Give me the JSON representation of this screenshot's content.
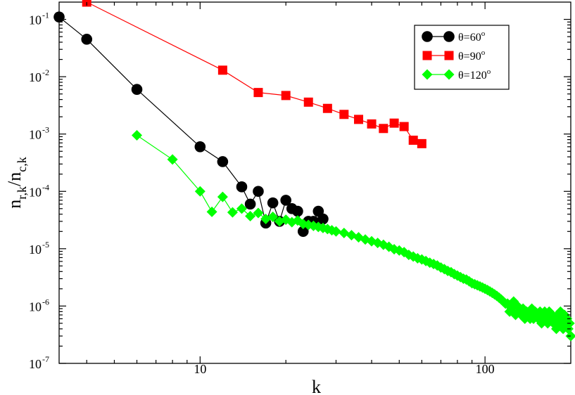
{
  "chart_data": {
    "type": "line",
    "x_scale": "log",
    "y_scale": "log",
    "xlim": [
      3.2,
      200
    ],
    "ylim": [
      1e-07,
      0.2
    ],
    "grid": false,
    "legend_position": "top-right",
    "xlabel": "k",
    "ylabel": "n r,k / n c,k",
    "x_ticks": [
      10,
      100
    ],
    "x_tick_labels": [
      "10",
      "100"
    ],
    "y_tick_labels": [
      {
        "mantissa": "10",
        "exp": "-1",
        "value": 0.1
      },
      {
        "mantissa": "10",
        "exp": "-2",
        "value": 0.01
      },
      {
        "mantissa": "10",
        "exp": "-3",
        "value": 0.001
      },
      {
        "mantissa": "10",
        "exp": "-4",
        "value": 0.0001
      },
      {
        "mantissa": "10",
        "exp": "-5",
        "value": 1e-05
      },
      {
        "mantissa": "10",
        "exp": "-6",
        "value": 1e-06
      },
      {
        "mantissa": "10",
        "exp": "-7",
        "value": 1e-07
      }
    ],
    "series": [
      {
        "name": "θ=60",
        "name_sup": "o",
        "color": "#000000",
        "marker": "circle",
        "points": [
          [
            3.2,
            0.11
          ],
          [
            4,
            0.045
          ],
          [
            6,
            0.006
          ],
          [
            10,
            0.0006
          ],
          [
            12,
            0.00033
          ],
          [
            14,
            0.00012
          ],
          [
            15,
            6e-05
          ],
          [
            16,
            0.0001
          ],
          [
            17,
            2.8e-05
          ],
          [
            18,
            6.3e-05
          ],
          [
            19,
            3e-05
          ],
          [
            20,
            7e-05
          ],
          [
            21,
            5e-05
          ],
          [
            22,
            4.5e-05
          ],
          [
            23,
            2e-05
          ],
          [
            24,
            3e-05
          ],
          [
            25,
            3e-05
          ],
          [
            26,
            4.5e-05
          ],
          [
            27,
            3.3e-05
          ]
        ]
      },
      {
        "name": "θ=90",
        "name_sup": "o",
        "color": "#ff0000",
        "marker": "square",
        "points": [
          [
            4,
            0.2
          ],
          [
            12,
            0.013
          ],
          [
            16,
            0.0053
          ],
          [
            20,
            0.0047
          ],
          [
            24,
            0.0036
          ],
          [
            28,
            0.0028
          ],
          [
            32,
            0.0022
          ],
          [
            36,
            0.0018
          ],
          [
            40,
            0.0015
          ],
          [
            44,
            0.00125
          ],
          [
            48,
            0.00155
          ],
          [
            52,
            0.00135
          ],
          [
            56,
            0.00078
          ],
          [
            60,
            0.00068
          ]
        ]
      },
      {
        "name": "θ=120",
        "name_sup": "o",
        "color": "#00ff00",
        "marker": "diamond",
        "points": [
          [
            6,
            0.00095
          ],
          [
            8,
            0.00036
          ],
          [
            10,
            0.0001
          ],
          [
            11,
            4.4e-05
          ],
          [
            12,
            8e-05
          ],
          [
            13,
            4.3e-05
          ],
          [
            14,
            5e-05
          ],
          [
            15,
            3.7e-05
          ],
          [
            16,
            4.2e-05
          ],
          [
            17,
            3.3e-05
          ],
          [
            18,
            3.6e-05
          ],
          [
            19,
            3e-05
          ],
          [
            20,
            3.2e-05
          ],
          [
            21,
            2.9e-05
          ],
          [
            22,
            3.1e-05
          ],
          [
            23,
            2.7e-05
          ],
          [
            24,
            2.6e-05
          ],
          [
            25,
            2.5e-05
          ],
          [
            26,
            2.4e-05
          ],
          [
            27,
            2.3e-05
          ],
          [
            28,
            2.2e-05
          ],
          [
            29,
            2.1e-05
          ],
          [
            30,
            2e-05
          ],
          [
            32,
            1.88e-05
          ],
          [
            34,
            1.72e-05
          ],
          [
            36,
            1.58e-05
          ],
          [
            38,
            1.45e-05
          ],
          [
            40,
            1.35e-05
          ],
          [
            42,
            1.26e-05
          ],
          [
            44,
            1.17e-05
          ],
          [
            46,
            1.08e-05
          ],
          [
            48,
            9.8e-06
          ],
          [
            50,
            9.3e-06
          ],
          [
            52,
            8.7e-06
          ],
          [
            54,
            7.8e-06
          ],
          [
            56,
            7.3e-06
          ],
          [
            58,
            6.8e-06
          ],
          [
            60,
            6.5e-06
          ],
          [
            62,
            6.1e-06
          ],
          [
            64,
            5.7e-06
          ],
          [
            66,
            5.4e-06
          ],
          [
            68,
            5.1e-06
          ],
          [
            70,
            4.7e-06
          ],
          [
            72,
            4.4e-06
          ],
          [
            74,
            4.1e-06
          ],
          [
            76,
            3.9e-06
          ],
          [
            78,
            3.6e-06
          ],
          [
            80,
            3.4e-06
          ],
          [
            82,
            3.2e-06
          ],
          [
            84,
            3e-06
          ],
          [
            86,
            2.9e-06
          ],
          [
            88,
            2.7e-06
          ],
          [
            90,
            2.5e-06
          ],
          [
            92,
            2.4e-06
          ],
          [
            94,
            2.3e-06
          ],
          [
            96,
            2.2e-06
          ],
          [
            98,
            2.1e-06
          ],
          [
            100,
            2e-06
          ],
          [
            102,
            1.9e-06
          ],
          [
            104,
            1.8e-06
          ],
          [
            106,
            1.7e-06
          ],
          [
            108,
            1.6e-06
          ],
          [
            110,
            1.5e-06
          ],
          [
            112,
            1.4e-06
          ],
          [
            114,
            1.3e-06
          ],
          [
            116,
            1.2e-06
          ],
          [
            118,
            1.1e-06
          ],
          [
            120,
            1.1e-06
          ],
          [
            122,
            8e-07
          ],
          [
            124,
            9e-07
          ],
          [
            126,
            1.2e-06
          ],
          [
            128,
            7e-07
          ],
          [
            130,
            1e-06
          ],
          [
            132,
            8e-07
          ],
          [
            134,
            7e-07
          ],
          [
            136,
            9e-07
          ],
          [
            138,
            6e-07
          ],
          [
            140,
            8e-07
          ],
          [
            142,
            7e-07
          ],
          [
            144,
            6e-07
          ],
          [
            146,
            9e-07
          ],
          [
            148,
            6e-07
          ],
          [
            150,
            8e-07
          ],
          [
            152,
            7e-07
          ],
          [
            154,
            6e-07
          ],
          [
            156,
            8e-07
          ],
          [
            158,
            5e-07
          ],
          [
            160,
            6e-07
          ],
          [
            162,
            8e-07
          ],
          [
            164,
            7e-07
          ],
          [
            166,
            5e-07
          ],
          [
            168,
            8e-07
          ],
          [
            170,
            6e-07
          ],
          [
            172,
            7e-07
          ],
          [
            174,
            5e-07
          ],
          [
            176,
            6e-07
          ],
          [
            178,
            4e-07
          ],
          [
            180,
            7e-07
          ],
          [
            182,
            5e-07
          ],
          [
            184,
            8e-07
          ],
          [
            186,
            6e-07
          ],
          [
            188,
            4e-07
          ],
          [
            190,
            7e-07
          ],
          [
            192,
            5e-07
          ],
          [
            194,
            6e-07
          ],
          [
            196,
            4e-07
          ],
          [
            198,
            5e-07
          ],
          [
            200,
            3e-07
          ]
        ]
      }
    ]
  }
}
